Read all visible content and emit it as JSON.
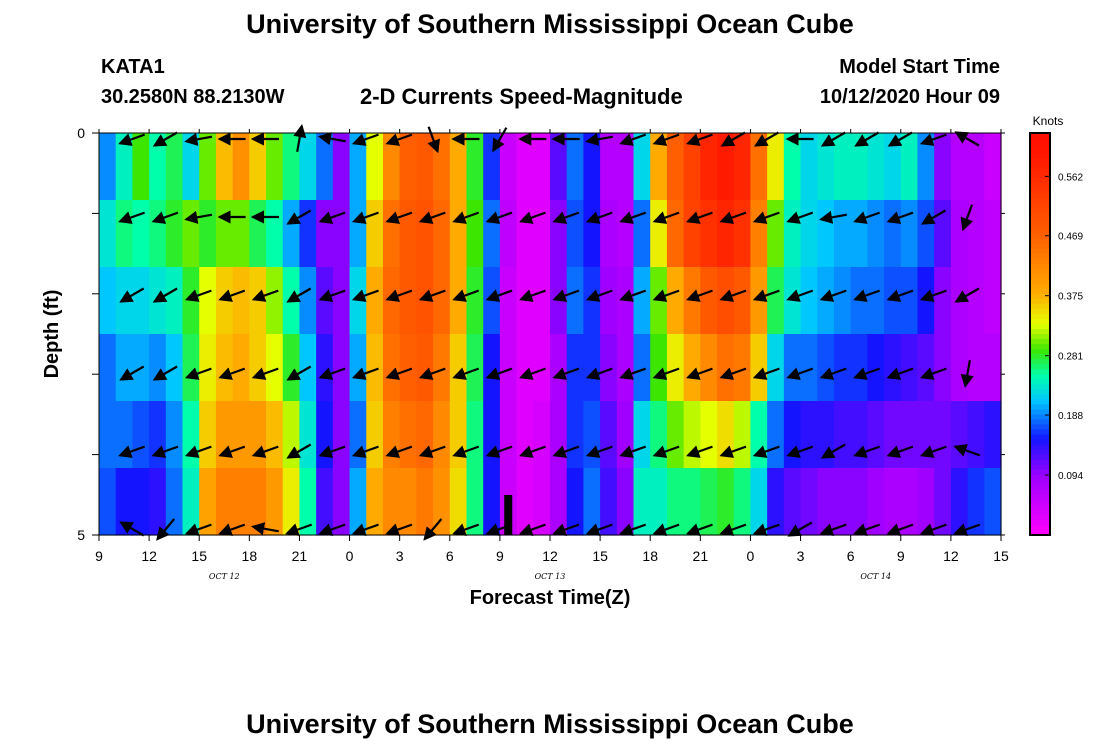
{
  "header": {
    "title": "University of Southern Mississippi Ocean Cube",
    "station": "KATA1",
    "coords": "30.2580N 88.2130W",
    "subtitle": "2-D Currents Speed-Magnitude",
    "model_start_label": "Model Start Time",
    "model_start_value": "10/12/2020 Hour 09"
  },
  "footer": {
    "title": "University of Southern Mississippi Ocean Cube"
  },
  "chart_data": {
    "type": "heatmap",
    "title": "2-D Currents Speed-Magnitude",
    "xlabel": "Forecast Time(Z)",
    "ylabel": "Depth (ft)",
    "x_tick_labels": [
      "9",
      "12",
      "15",
      "18",
      "21",
      "0",
      "3",
      "6",
      "9",
      "12",
      "15",
      "18",
      "21",
      "0",
      "3",
      "6",
      "9",
      "12",
      "15"
    ],
    "x_tick_hours": [
      0,
      3,
      6,
      9,
      12,
      15,
      18,
      21,
      24,
      27,
      30,
      33,
      36,
      39,
      42,
      45,
      48,
      51,
      54
    ],
    "x_range_hours": [
      0,
      54
    ],
    "day_labels": [
      {
        "text": "OCT 12",
        "hour": 7.5
      },
      {
        "text": "OCT 13",
        "hour": 27
      },
      {
        "text": "OCT 14",
        "hour": 46.5
      }
    ],
    "y_tick_labels": [
      "0",
      "5"
    ],
    "y_range": [
      0,
      5
    ],
    "colorbar": {
      "unit": "Knots",
      "tick_labels": [
        "0.562",
        "0.469",
        "0.375",
        "0.281",
        "0.188",
        "0.094"
      ],
      "tick_values": [
        0.562,
        0.469,
        0.375,
        0.281,
        0.188,
        0.094
      ],
      "range": [
        0,
        0.63
      ]
    },
    "depth_rows": [
      0,
      1,
      2,
      3,
      4,
      5
    ],
    "hours": [
      0,
      1,
      2,
      3,
      4,
      5,
      6,
      7,
      8,
      9,
      10,
      11,
      12,
      13,
      14,
      15,
      16,
      17,
      18,
      19,
      20,
      21,
      22,
      23,
      24,
      25,
      26,
      27,
      28,
      29,
      30,
      31,
      32,
      33,
      34,
      35,
      36,
      37,
      38,
      39,
      40,
      41,
      42,
      43,
      44,
      45,
      46,
      47,
      48,
      49,
      50,
      51,
      52,
      53
    ],
    "speed": [
      [
        0.19,
        0.24,
        0.29,
        0.25,
        0.27,
        0.22,
        0.3,
        0.37,
        0.41,
        0.36,
        0.3,
        0.26,
        0.22,
        0.18,
        0.1,
        0.2,
        0.33,
        0.42,
        0.47,
        0.48,
        0.45,
        0.38,
        0.28,
        0.16,
        0.05,
        0.03,
        0.03,
        0.12,
        0.18,
        0.15,
        0.07,
        0.07,
        0.22,
        0.38,
        0.47,
        0.52,
        0.57,
        0.59,
        0.57,
        0.45,
        0.34,
        0.25,
        0.22,
        0.23,
        0.24,
        0.24,
        0.23,
        0.22,
        0.24,
        0.19,
        0.1,
        0.07,
        0.07,
        0.05
      ],
      [
        0.23,
        0.26,
        0.25,
        0.26,
        0.28,
        0.3,
        0.28,
        0.3,
        0.3,
        0.27,
        0.25,
        0.2,
        0.16,
        0.1,
        0.1,
        0.2,
        0.36,
        0.45,
        0.48,
        0.49,
        0.46,
        0.38,
        0.29,
        0.18,
        0.06,
        0.03,
        0.03,
        0.1,
        0.17,
        0.15,
        0.08,
        0.07,
        0.18,
        0.34,
        0.46,
        0.52,
        0.55,
        0.57,
        0.55,
        0.43,
        0.3,
        0.24,
        0.22,
        0.21,
        0.2,
        0.2,
        0.19,
        0.18,
        0.19,
        0.17,
        0.12,
        0.08,
        0.07,
        0.06
      ],
      [
        0.21,
        0.22,
        0.22,
        0.23,
        0.24,
        0.28,
        0.33,
        0.36,
        0.37,
        0.36,
        0.31,
        0.25,
        0.19,
        0.12,
        0.1,
        0.22,
        0.38,
        0.46,
        0.48,
        0.49,
        0.46,
        0.38,
        0.28,
        0.17,
        0.05,
        0.03,
        0.03,
        0.1,
        0.18,
        0.16,
        0.09,
        0.08,
        0.2,
        0.3,
        0.38,
        0.44,
        0.48,
        0.5,
        0.48,
        0.4,
        0.27,
        0.23,
        0.21,
        0.2,
        0.19,
        0.18,
        0.18,
        0.17,
        0.17,
        0.15,
        0.1,
        0.08,
        0.07,
        0.06
      ],
      [
        0.18,
        0.2,
        0.2,
        0.19,
        0.21,
        0.27,
        0.34,
        0.37,
        0.38,
        0.36,
        0.33,
        0.28,
        0.21,
        0.14,
        0.1,
        0.2,
        0.37,
        0.45,
        0.47,
        0.48,
        0.44,
        0.36,
        0.27,
        0.15,
        0.05,
        0.03,
        0.03,
        0.08,
        0.16,
        0.16,
        0.1,
        0.08,
        0.18,
        0.29,
        0.34,
        0.38,
        0.42,
        0.45,
        0.44,
        0.36,
        0.22,
        0.18,
        0.18,
        0.17,
        0.16,
        0.16,
        0.15,
        0.14,
        0.13,
        0.12,
        0.1,
        0.08,
        0.07,
        0.07
      ],
      [
        0.18,
        0.18,
        0.17,
        0.16,
        0.19,
        0.25,
        0.36,
        0.4,
        0.4,
        0.4,
        0.37,
        0.32,
        0.23,
        0.15,
        0.1,
        0.18,
        0.36,
        0.43,
        0.45,
        0.46,
        0.42,
        0.36,
        0.26,
        0.15,
        0.05,
        0.03,
        0.04,
        0.08,
        0.16,
        0.17,
        0.12,
        0.09,
        0.22,
        0.26,
        0.3,
        0.32,
        0.33,
        0.35,
        0.32,
        0.25,
        0.18,
        0.15,
        0.14,
        0.14,
        0.13,
        0.13,
        0.12,
        0.11,
        0.11,
        0.11,
        0.11,
        0.12,
        0.13,
        0.14
      ],
      [
        0.17,
        0.15,
        0.15,
        0.14,
        0.18,
        0.24,
        0.39,
        0.43,
        0.43,
        0.43,
        0.4,
        0.34,
        0.25,
        0.13,
        0.1,
        0.2,
        0.38,
        0.42,
        0.42,
        0.44,
        0.41,
        0.35,
        0.26,
        0.15,
        0.05,
        0.03,
        0.04,
        0.08,
        0.15,
        0.18,
        0.13,
        0.1,
        0.24,
        0.24,
        0.26,
        0.26,
        0.27,
        0.28,
        0.26,
        0.22,
        0.14,
        0.12,
        0.11,
        0.1,
        0.1,
        0.1,
        0.09,
        0.08,
        0.08,
        0.09,
        0.11,
        0.14,
        0.16,
        0.17
      ]
    ],
    "arrow_rows": [
      0,
      1,
      2,
      3,
      4,
      5
    ],
    "arrow_hours": [
      0,
      2,
      4,
      6,
      8,
      10,
      12,
      14,
      16,
      18,
      20,
      22,
      24,
      26,
      28,
      30,
      32,
      34,
      36,
      38,
      40,
      42,
      44,
      46,
      48,
      50,
      52,
      54
    ],
    "arrow_dir_deg": [
      [
        null,
        20,
        40,
        60,
        5,
        0,
        null,
        null,
        null,
        null,
        null,
        null,
        null,
        null,
        null,
        null,
        null,
        null,
        null,
        null,
        null,
        null,
        null,
        null,
        null,
        null,
        null,
        null
      ],
      [
        null,
        20,
        20,
        40,
        10,
        0,
        null,
        null,
        null,
        null,
        null,
        null,
        null,
        null,
        null,
        null,
        null,
        null,
        null,
        null,
        null,
        null,
        null,
        null,
        null,
        null,
        null,
        null
      ],
      [
        null,
        null,
        null,
        null,
        null,
        null,
        null,
        null,
        null,
        null,
        null,
        null,
        null,
        null,
        null,
        null,
        null,
        null,
        null,
        null,
        null,
        null,
        null,
        null,
        null,
        null,
        null,
        null
      ],
      [
        null,
        null,
        null,
        null,
        null,
        null,
        null,
        null,
        null,
        null,
        null,
        null,
        null,
        null,
        null,
        null,
        null,
        null,
        null,
        null,
        null,
        null,
        null,
        null,
        null,
        null,
        null,
        null
      ],
      [
        null,
        null,
        null,
        null,
        null,
        null,
        null,
        null,
        null,
        null,
        null,
        null,
        null,
        null,
        null,
        null,
        null,
        null,
        null,
        null,
        null,
        null,
        null,
        null,
        null,
        null,
        null,
        null
      ],
      [
        null,
        null,
        null,
        null,
        null,
        null,
        null,
        null,
        null,
        null,
        null,
        null,
        null,
        null,
        null,
        null,
        null,
        null,
        null,
        null,
        null,
        null,
        null,
        null,
        null,
        null,
        null,
        null
      ]
    ],
    "marker_hour": 24.5,
    "grid": false
  }
}
